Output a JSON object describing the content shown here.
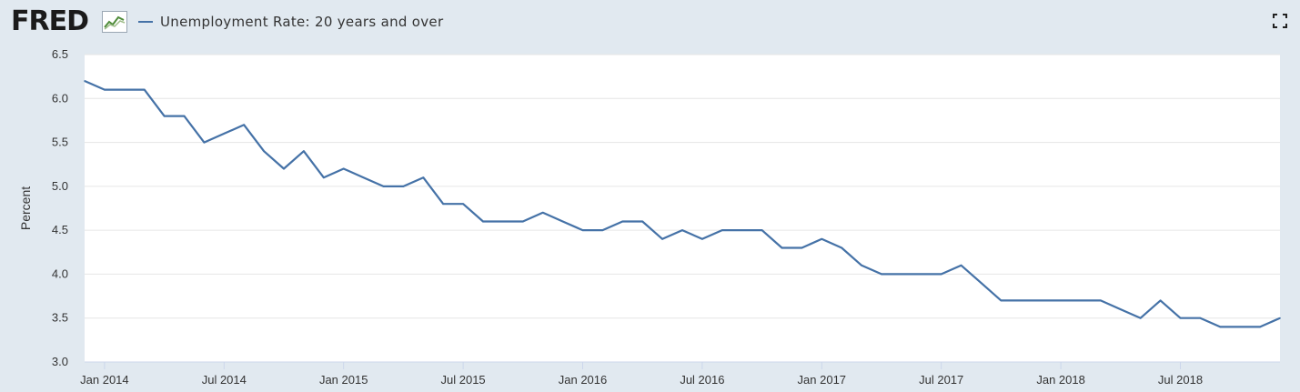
{
  "header": {
    "logo_text": "FRED",
    "logo_icon": "fred-chart-logo-icon",
    "legend_label": "Unemployment Rate: 20 years and over",
    "fullscreen_icon": "fullscreen-icon"
  },
  "colors": {
    "background": "#e1e9f0",
    "plot_background": "#ffffff",
    "series": "#4572a7",
    "grid": "#e6e6e6"
  },
  "chart_data": {
    "type": "line",
    "ylabel": "Percent",
    "xlabel": "",
    "ylim": [
      3.0,
      6.5
    ],
    "grid": "horizontal",
    "yticks": [
      "3.0",
      "3.5",
      "4.0",
      "4.5",
      "5.0",
      "5.5",
      "6.0",
      "6.5"
    ],
    "xticks": [
      "Jan 2014",
      "Jul 2014",
      "Jan 2015",
      "Jul 2015",
      "Jan 2016",
      "Jul 2016",
      "Jan 2017",
      "Jul 2017",
      "Jan 2018",
      "Jul 2018"
    ],
    "x": [
      "2013-12",
      "2014-01",
      "2014-02",
      "2014-03",
      "2014-04",
      "2014-05",
      "2014-06",
      "2014-07",
      "2014-08",
      "2014-09",
      "2014-10",
      "2014-11",
      "2014-12",
      "2015-01",
      "2015-02",
      "2015-03",
      "2015-04",
      "2015-05",
      "2015-06",
      "2015-07",
      "2015-08",
      "2015-09",
      "2015-10",
      "2015-11",
      "2015-12",
      "2016-01",
      "2016-02",
      "2016-03",
      "2016-04",
      "2016-05",
      "2016-06",
      "2016-07",
      "2016-08",
      "2016-09",
      "2016-10",
      "2016-11",
      "2016-12",
      "2017-01",
      "2017-02",
      "2017-03",
      "2017-04",
      "2017-05",
      "2017-06",
      "2017-07",
      "2017-08",
      "2017-09",
      "2017-10",
      "2017-11",
      "2017-12",
      "2018-01",
      "2018-02",
      "2018-03",
      "2018-04",
      "2018-05",
      "2018-06",
      "2018-07",
      "2018-08",
      "2018-09",
      "2018-10",
      "2018-11",
      "2018-12"
    ],
    "series": [
      {
        "name": "Unemployment Rate: 20 years and over",
        "values": [
          6.2,
          6.1,
          6.1,
          6.1,
          5.8,
          5.8,
          5.5,
          5.6,
          5.7,
          5.4,
          5.2,
          5.4,
          5.1,
          5.2,
          5.1,
          5.0,
          5.0,
          5.1,
          4.8,
          4.8,
          4.6,
          4.6,
          4.6,
          4.7,
          4.6,
          4.5,
          4.5,
          4.6,
          4.6,
          4.4,
          4.5,
          4.4,
          4.5,
          4.5,
          4.5,
          4.3,
          4.3,
          4.4,
          4.3,
          4.1,
          4.0,
          4.0,
          4.0,
          4.0,
          4.1,
          3.9,
          3.7,
          3.7,
          3.7,
          3.7,
          3.7,
          3.7,
          3.6,
          3.5,
          3.7,
          3.5,
          3.5,
          3.4,
          3.4,
          3.4,
          3.5
        ]
      }
    ]
  }
}
